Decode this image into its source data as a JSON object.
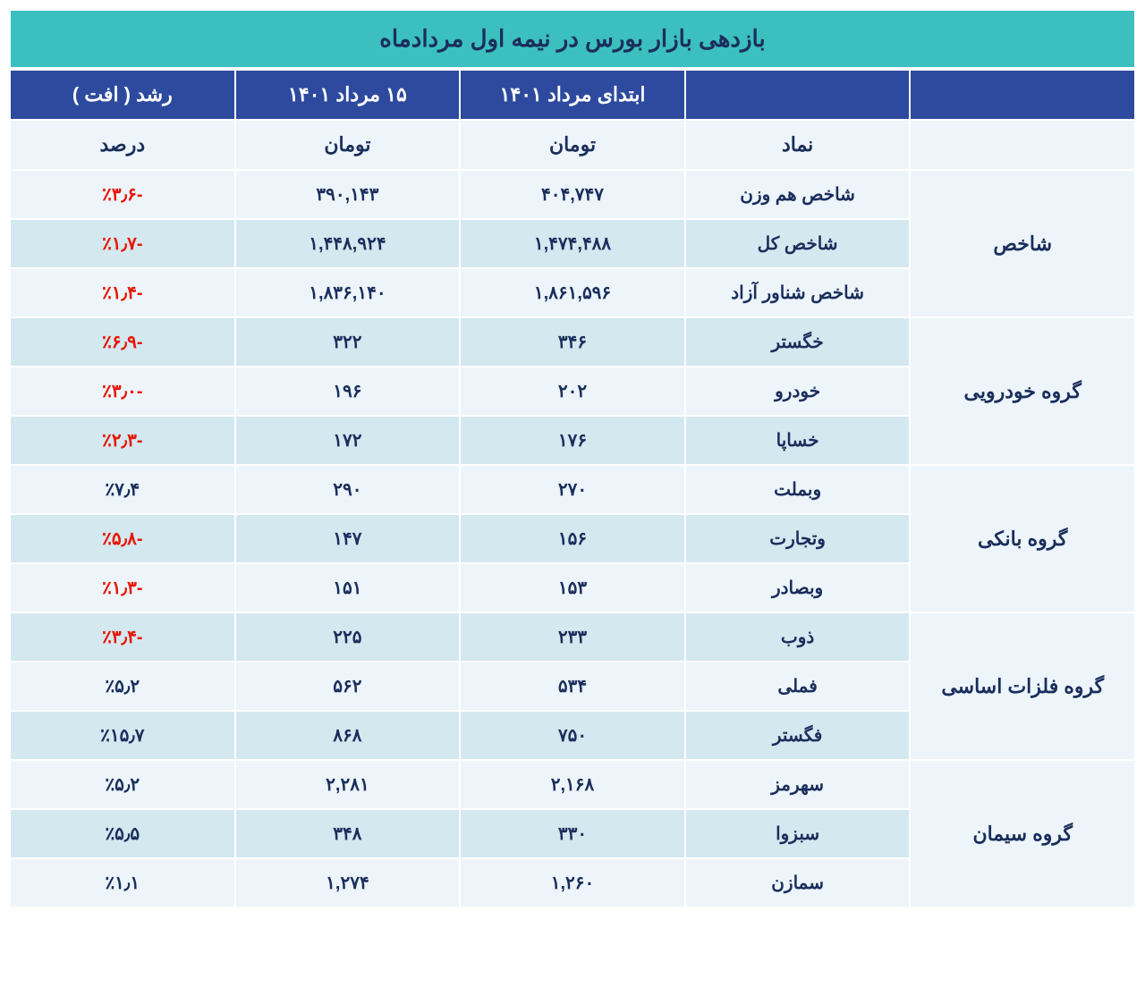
{
  "title": "بازدهی بازار بورس در نیمه اول مردادماه",
  "colors": {
    "title_bg": "#3cbfbf",
    "header_bg": "#2d4a9e",
    "row_odd": "#edf5fa",
    "row_even": "#d4e8f0",
    "text_primary": "#1a2e5c",
    "negative": "#e81500",
    "border": "#ffffff"
  },
  "headers": {
    "group": "",
    "symbol": "",
    "start": "ابتدای مرداد ۱۴۰۱",
    "end": "۱۵ مرداد ۱۴۰۱",
    "change": "رشد ( افت )"
  },
  "sub_headers": {
    "group": "",
    "symbol": "نماد",
    "start": "تومان",
    "end": "تومان",
    "change": "درصد"
  },
  "groups": [
    {
      "name": "شاخص",
      "rows": [
        {
          "symbol": "شاخص هم وزن",
          "start": "۴۰۴,۷۴۷",
          "end": "۳۹۰,۱۴۳",
          "change": "-٪۳٫۶",
          "neg": true,
          "parity": "odd"
        },
        {
          "symbol": "شاخص کل",
          "start": "۱,۴۷۴,۴۸۸",
          "end": "۱,۴۴۸,۹۲۴",
          "change": "-٪۱٫۷",
          "neg": true,
          "parity": "even"
        },
        {
          "symbol": "شاخص شناور آزاد",
          "start": "۱,۸۶۱,۵۹۶",
          "end": "۱,۸۳۶,۱۴۰",
          "change": "-٪۱٫۴",
          "neg": true,
          "parity": "odd"
        }
      ]
    },
    {
      "name": "گروه خودرویی",
      "rows": [
        {
          "symbol": "خگستر",
          "start": "۳۴۶",
          "end": "۳۲۲",
          "change": "-٪۶٫۹",
          "neg": true,
          "parity": "even"
        },
        {
          "symbol": "خودرو",
          "start": "۲۰۲",
          "end": "۱۹۶",
          "change": "-٪۳٫۰",
          "neg": true,
          "parity": "odd"
        },
        {
          "symbol": "خساپا",
          "start": "۱۷۶",
          "end": "۱۷۲",
          "change": "-٪۲٫۳",
          "neg": true,
          "parity": "even"
        }
      ]
    },
    {
      "name": "گروه بانکی",
      "rows": [
        {
          "symbol": "وبملت",
          "start": "۲۷۰",
          "end": "۲۹۰",
          "change": "٪۷٫۴",
          "neg": false,
          "parity": "odd"
        },
        {
          "symbol": "وتجارت",
          "start": "۱۵۶",
          "end": "۱۴۷",
          "change": "-٪۵٫۸",
          "neg": true,
          "parity": "even"
        },
        {
          "symbol": "وبصادر",
          "start": "۱۵۳",
          "end": "۱۵۱",
          "change": "-٪۱٫۳",
          "neg": true,
          "parity": "odd"
        }
      ]
    },
    {
      "name": "گروه فلزات اساسی",
      "rows": [
        {
          "symbol": "ذوب",
          "start": "۲۳۳",
          "end": "۲۲۵",
          "change": "-٪۳٫۴",
          "neg": true,
          "parity": "even"
        },
        {
          "symbol": "فملی",
          "start": "۵۳۴",
          "end": "۵۶۲",
          "change": "٪۵٫۲",
          "neg": false,
          "parity": "odd"
        },
        {
          "symbol": "فگستر",
          "start": "۷۵۰",
          "end": "۸۶۸",
          "change": "٪۱۵٫۷",
          "neg": false,
          "parity": "even"
        }
      ]
    },
    {
      "name": "گروه سیمان",
      "rows": [
        {
          "symbol": "سهرمز",
          "start": "۲,۱۶۸",
          "end": "۲,۲۸۱",
          "change": "٪۵٫۲",
          "neg": false,
          "parity": "odd"
        },
        {
          "symbol": "سبزوا",
          "start": "۳۳۰",
          "end": "۳۴۸",
          "change": "٪۵٫۵",
          "neg": false,
          "parity": "even"
        },
        {
          "symbol": "سمازن",
          "start": "۱,۲۶۰",
          "end": "۱,۲۷۴",
          "change": "٪۱٫۱",
          "neg": false,
          "parity": "odd"
        }
      ]
    }
  ]
}
